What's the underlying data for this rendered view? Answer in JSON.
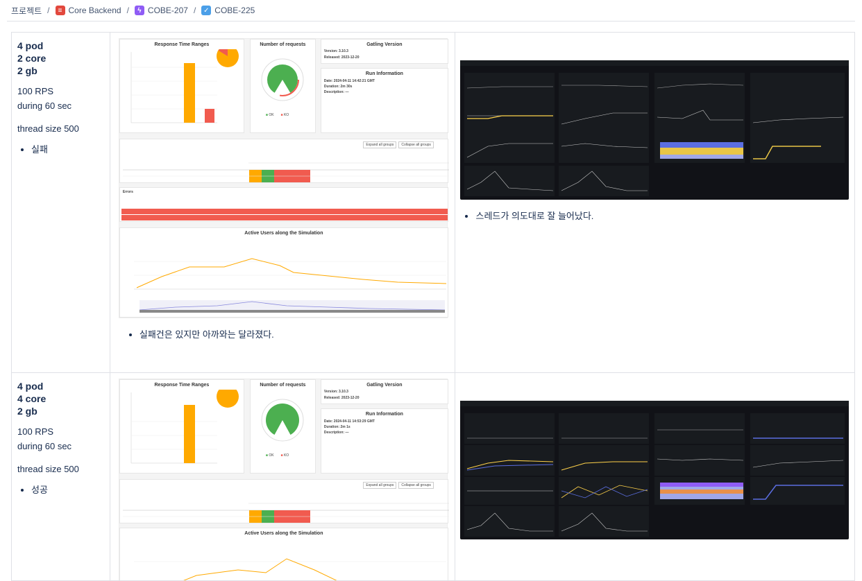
{
  "breadcrumb": {
    "root": "프로젝트",
    "items": [
      {
        "label": "Core Backend",
        "icon": "project-icon",
        "color": "#e2483d"
      },
      {
        "label": "COBE-207",
        "icon": "epic-icon",
        "color": "#8f5cf5"
      },
      {
        "label": "COBE-225",
        "icon": "task-checkbox-icon",
        "color": "#4b9fe8"
      }
    ]
  },
  "rows": [
    {
      "spec": [
        "4 pod",
        "2 core",
        "2 gb"
      ],
      "rps": "100 RPS",
      "duration": "during 60 sec",
      "thread": "thread size 500",
      "result": "실패",
      "gatling": {
        "response_title": "Response Time Ranges",
        "requests_title": "Number of requests",
        "version_title": "Gatling Version",
        "version": "Version: 3.10.3",
        "released": "Released: 2023-12-20",
        "run_title": "Run Information",
        "date": "Date: 2024-04-11 14:42:21 GMT",
        "duration": "Duration: 2m 30s",
        "description": "Description: —",
        "ok": "OK",
        "ko": "KO",
        "expand": "Expand all groups",
        "collapse": "Collapse all groups",
        "errors_title": "Errors",
        "active_title": "Active Users along the Simulation"
      },
      "caption_left": "실패건은 있지만 아까와는 달라졌다.",
      "caption_right": "스레드가 의도대로 잘 늘어났다."
    },
    {
      "spec": [
        "4 pod",
        "4 core",
        "2 gb"
      ],
      "rps": "100 RPS",
      "duration": "during 60 sec",
      "thread": "thread size 500",
      "result": "성공",
      "gatling": {
        "response_title": "Response Time Ranges",
        "requests_title": "Number of requests",
        "version_title": "Gatling Version",
        "version": "Version: 3.10.3",
        "released": "Released: 2023-12-20",
        "run_title": "Run Information",
        "date": "Date: 2024-04-11 14:53:29 GMT",
        "duration": "Duration: 2m 1s",
        "description": "Description: —",
        "ok": "OK",
        "ko": "KO",
        "expand": "Expand all groups",
        "collapse": "Collapse all groups",
        "active_title": "Active Users along the Simulation"
      }
    }
  ],
  "colors": {
    "ok": "#4caf50",
    "ko": "#f15b4f",
    "orange": "#ffa900",
    "grafana_bg": "#111217"
  }
}
